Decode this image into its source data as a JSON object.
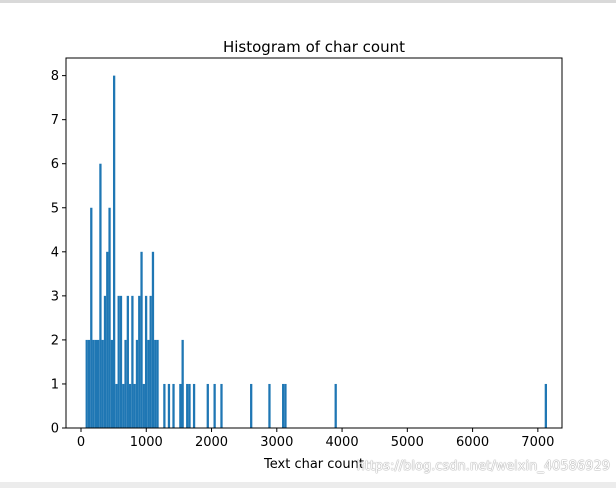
{
  "watermark": "https://blog.csdn.net/weixin_40586929",
  "chart_data": {
    "type": "bar",
    "title": "Histogram of char count",
    "xlabel": "Text char count",
    "ylabel": "",
    "xlim": [
      -230,
      7370
    ],
    "ylim": [
      0,
      8.4
    ],
    "xticks": [
      0,
      1000,
      2000,
      3000,
      4000,
      5000,
      6000,
      7000
    ],
    "yticks": [
      0,
      1,
      2,
      3,
      4,
      5,
      6,
      7,
      8
    ],
    "bin_width": 35,
    "bar_color": "#1f77b4",
    "grid": false,
    "bins": [
      {
        "x": 70,
        "y": 2
      },
      {
        "x": 105,
        "y": 2
      },
      {
        "x": 140,
        "y": 5
      },
      {
        "x": 175,
        "y": 2
      },
      {
        "x": 210,
        "y": 2
      },
      {
        "x": 245,
        "y": 2
      },
      {
        "x": 280,
        "y": 6
      },
      {
        "x": 315,
        "y": 2
      },
      {
        "x": 350,
        "y": 3
      },
      {
        "x": 385,
        "y": 4
      },
      {
        "x": 420,
        "y": 5
      },
      {
        "x": 455,
        "y": 2
      },
      {
        "x": 490,
        "y": 8
      },
      {
        "x": 525,
        "y": 1
      },
      {
        "x": 560,
        "y": 3
      },
      {
        "x": 595,
        "y": 3
      },
      {
        "x": 630,
        "y": 1
      },
      {
        "x": 665,
        "y": 2
      },
      {
        "x": 700,
        "y": 3
      },
      {
        "x": 735,
        "y": 1
      },
      {
        "x": 770,
        "y": 3
      },
      {
        "x": 805,
        "y": 1
      },
      {
        "x": 840,
        "y": 2
      },
      {
        "x": 875,
        "y": 3
      },
      {
        "x": 910,
        "y": 4
      },
      {
        "x": 945,
        "y": 1
      },
      {
        "x": 980,
        "y": 3
      },
      {
        "x": 1015,
        "y": 2
      },
      {
        "x": 1050,
        "y": 3
      },
      {
        "x": 1085,
        "y": 4
      },
      {
        "x": 1120,
        "y": 2
      },
      {
        "x": 1155,
        "y": 2
      },
      {
        "x": 1260,
        "y": 1
      },
      {
        "x": 1330,
        "y": 1
      },
      {
        "x": 1400,
        "y": 1
      },
      {
        "x": 1505,
        "y": 1
      },
      {
        "x": 1540,
        "y": 2
      },
      {
        "x": 1610,
        "y": 1
      },
      {
        "x": 1645,
        "y": 1
      },
      {
        "x": 1715,
        "y": 1
      },
      {
        "x": 1925,
        "y": 1
      },
      {
        "x": 2030,
        "y": 1
      },
      {
        "x": 2135,
        "y": 1
      },
      {
        "x": 2590,
        "y": 1
      },
      {
        "x": 2870,
        "y": 1
      },
      {
        "x": 3080,
        "y": 1
      },
      {
        "x": 3115,
        "y": 1
      },
      {
        "x": 3885,
        "y": 1
      },
      {
        "x": 7105,
        "y": 1
      }
    ]
  }
}
